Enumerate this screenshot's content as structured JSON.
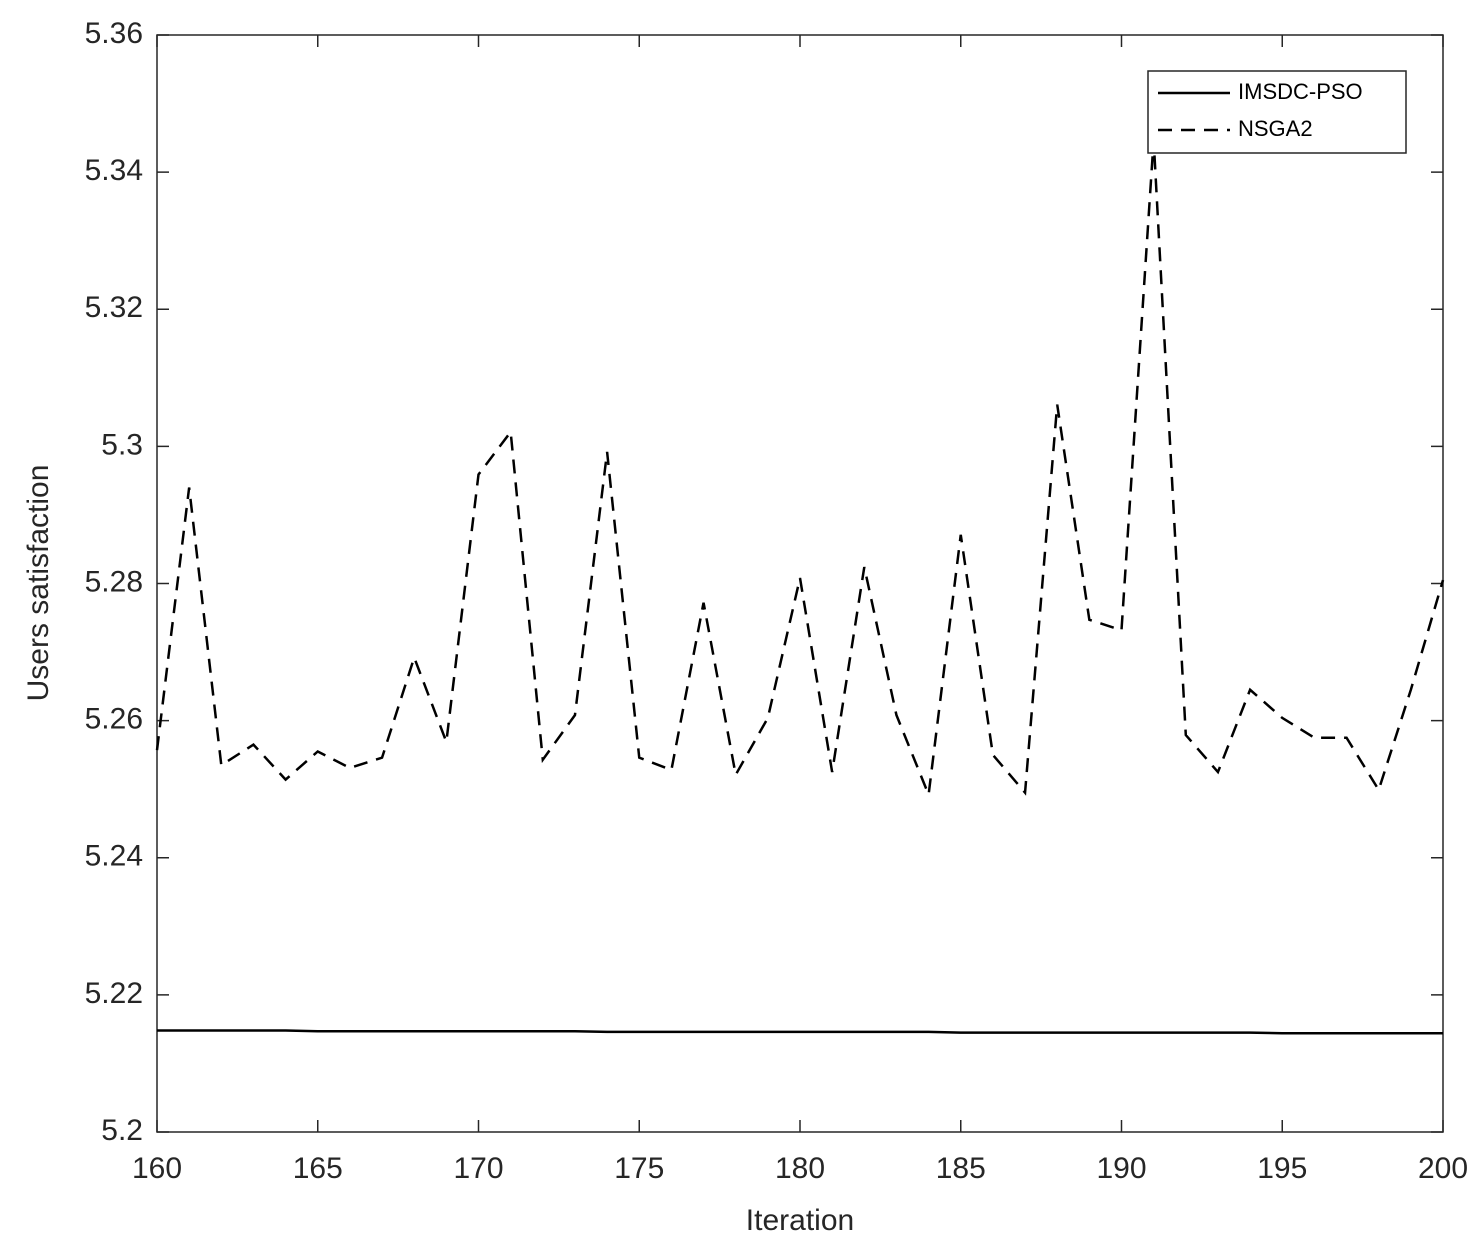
{
  "chart_data": {
    "type": "line",
    "xlabel": "Iteration",
    "ylabel": "Users satisfaction",
    "x": [
      160,
      161,
      162,
      163,
      164,
      165,
      166,
      167,
      168,
      169,
      170,
      171,
      172,
      173,
      174,
      175,
      176,
      177,
      178,
      179,
      180,
      181,
      182,
      183,
      184,
      185,
      186,
      187,
      188,
      189,
      190,
      191,
      192,
      193,
      194,
      195,
      196,
      197,
      198,
      199,
      200
    ],
    "series": [
      {
        "name": "IMSDC-PSO",
        "color": "#000000",
        "dash": "solid",
        "values": [
          5.2148,
          5.2148,
          5.2148,
          5.2148,
          5.2148,
          5.2147,
          5.2147,
          5.2147,
          5.2147,
          5.2147,
          5.2147,
          5.2147,
          5.2147,
          5.2147,
          5.2146,
          5.2146,
          5.2146,
          5.2146,
          5.2146,
          5.2146,
          5.2146,
          5.2146,
          5.2146,
          5.2146,
          5.2146,
          5.2145,
          5.2145,
          5.2145,
          5.2145,
          5.2145,
          5.2145,
          5.2145,
          5.2145,
          5.2145,
          5.2145,
          5.2144,
          5.2144,
          5.2144,
          5.2144,
          5.2144,
          5.2144
        ]
      },
      {
        "name": "NSGA2",
        "color": "#000000",
        "dash": "dashed",
        "values": [
          5.2557,
          5.294,
          5.2535,
          5.2565,
          5.2514,
          5.2555,
          5.2531,
          5.2546,
          5.2692,
          5.2569,
          5.2959,
          5.3021,
          5.2543,
          5.2608,
          5.2992,
          5.2546,
          5.2528,
          5.2772,
          5.2521,
          5.2604,
          5.2808,
          5.2525,
          5.2824,
          5.2608,
          5.2492,
          5.2871,
          5.255,
          5.2495,
          5.3061,
          5.2747,
          5.2732,
          5.3447,
          5.2579,
          5.2525,
          5.2645,
          5.2604,
          5.2575,
          5.2575,
          5.2499,
          5.2645,
          5.2805
        ]
      }
    ],
    "xlim": [
      160,
      200
    ],
    "xticks": [
      160,
      165,
      170,
      175,
      180,
      185,
      190,
      195,
      200
    ],
    "ylim": [
      5.2,
      5.36
    ],
    "yticks": [
      5.2,
      5.22,
      5.24,
      5.26,
      5.28,
      5.3,
      5.32,
      5.34,
      5.36
    ],
    "legend": "upper right"
  }
}
